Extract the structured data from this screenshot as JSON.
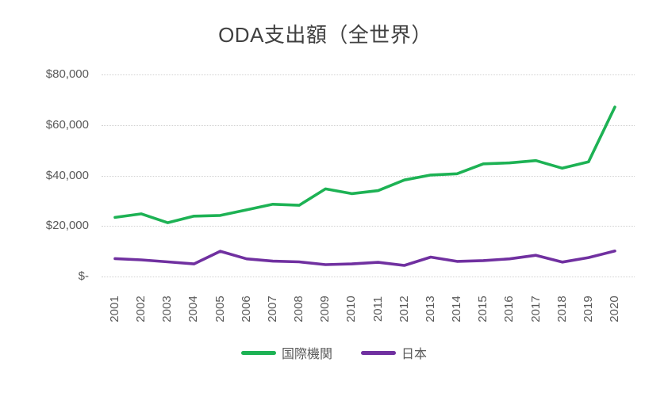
{
  "title": "ODA支出額（全世界）",
  "chart_data": {
    "type": "line",
    "title": "ODA支出額（全世界）",
    "categories": [
      "2001",
      "2002",
      "2003",
      "2004",
      "2005",
      "2006",
      "2007",
      "2008",
      "2009",
      "2010",
      "2011",
      "2012",
      "2013",
      "2014",
      "2015",
      "2016",
      "2017",
      "2018",
      "2019",
      "2020"
    ],
    "series": [
      {
        "name": "国際機関",
        "color": "#1db254",
        "values": [
          23400,
          24800,
          21300,
          23900,
          24200,
          26400,
          28600,
          28200,
          34700,
          32800,
          34000,
          38200,
          40200,
          40700,
          44600,
          45000,
          45900,
          42900,
          45400,
          67100
        ]
      },
      {
        "name": "日本",
        "color": "#7030a0",
        "values": [
          7100,
          6600,
          5800,
          5000,
          10000,
          7000,
          6100,
          5800,
          4700,
          5000,
          5600,
          4400,
          7700,
          6000,
          6300,
          7000,
          8400,
          5700,
          7500,
          10100
        ]
      }
    ],
    "xlabel": "",
    "ylabel": "",
    "ylim": [
      0,
      80000
    ],
    "y_axis": {
      "ticks": [
        {
          "value": 0,
          "label": "$-"
        },
        {
          "value": 20000,
          "label": "$20,000"
        },
        {
          "value": 40000,
          "label": "$40,000"
        },
        {
          "value": 60000,
          "label": "$60,000"
        },
        {
          "value": 80000,
          "label": "$80,000"
        }
      ]
    },
    "grid": "horizontal-dotted",
    "legend_position": "bottom",
    "x_label_rotation": -90
  }
}
